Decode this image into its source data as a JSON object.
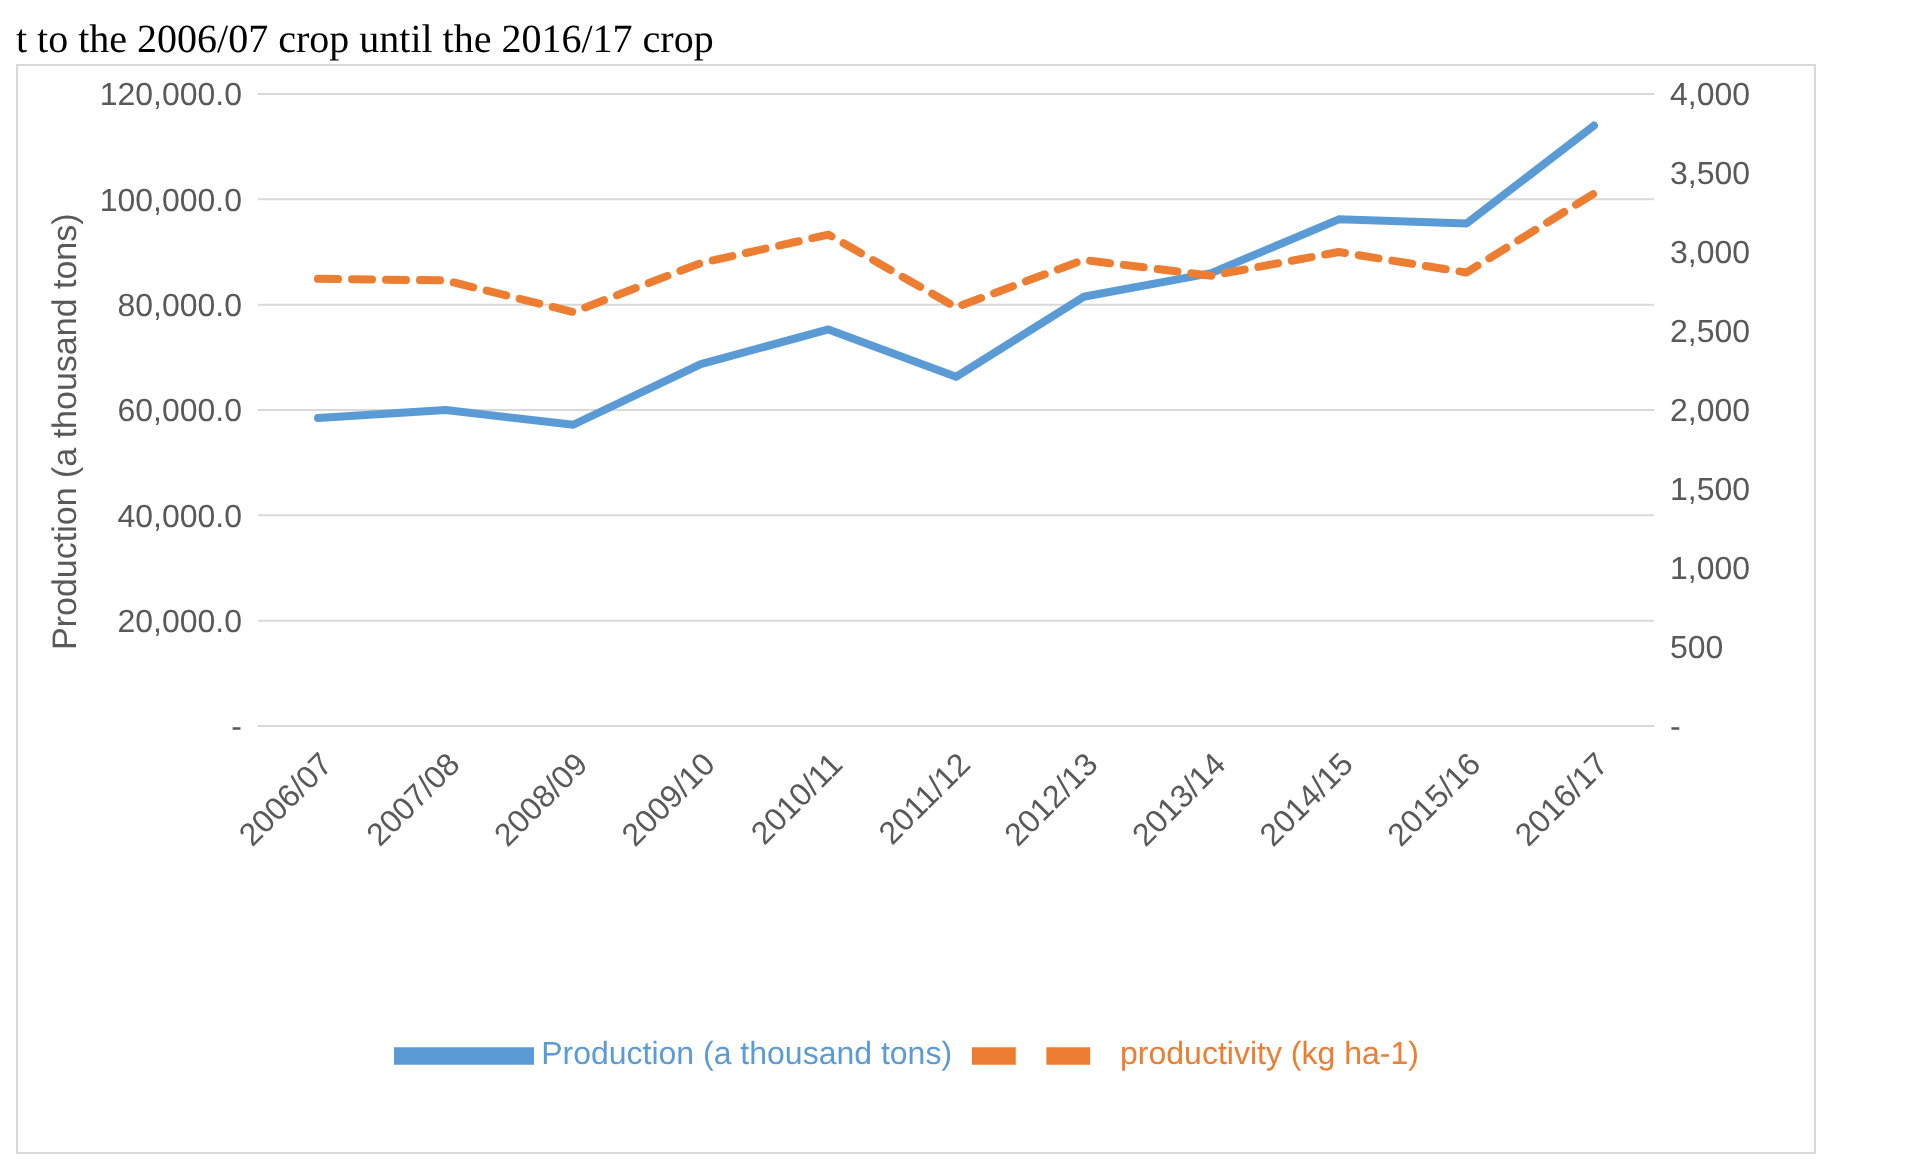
{
  "chart_data": {
    "type": "line",
    "annotations": [
      "t to the 2006/07 crop until the 2016/17 crop"
    ],
    "ylabel": "Production (a thousand tons)",
    "categories": [
      "2006/07",
      "2007/08",
      "2008/09",
      "2009/10",
      "2010/11",
      "2011/12",
      "2012/13",
      "2013/14",
      "2014/15",
      "2015/16",
      "2016/17"
    ],
    "series": [
      {
        "name": "Production (a thousand tons)",
        "color": "#5b9bd5",
        "line_style": "solid",
        "values": [
          58500,
          60000,
          57200,
          68700,
          75300,
          66300,
          81500,
          86000,
          96200,
          95400,
          114000
        ]
      },
      {
        "name": "productivity (kg ha-1)",
        "color": "#ed7d31",
        "line_style": "dashed",
        "axis": "y2",
        "values": [
          2830,
          2820,
          2620,
          2930,
          3110,
          2650,
          2950,
          2850,
          3000,
          2870,
          3370
        ]
      }
    ],
    "ylim": [
      0,
      120000
    ],
    "yticks": [
      {
        "value": 0,
        "label": "-"
      },
      {
        "value": 20000,
        "label": "20,000.0"
      },
      {
        "value": 40000,
        "label": "40,000.0"
      },
      {
        "value": 60000,
        "label": "60,000.0"
      },
      {
        "value": 80000,
        "label": "80,000.0"
      },
      {
        "value": 100000,
        "label": "100,000.0"
      },
      {
        "value": 120000,
        "label": "120,000.0"
      }
    ],
    "y2lim": [
      0,
      4000
    ],
    "y2ticks": [
      {
        "value": 0,
        "label": "-"
      },
      {
        "value": 500,
        "label": "500"
      },
      {
        "value": 1000,
        "label": "1,000"
      },
      {
        "value": 1500,
        "label": "1,500"
      },
      {
        "value": 2000,
        "label": "2,000"
      },
      {
        "value": 2500,
        "label": "2,500"
      },
      {
        "value": 3000,
        "label": "3,000"
      },
      {
        "value": 3500,
        "label": "3,500"
      },
      {
        "value": 4000,
        "label": "4,000"
      }
    ],
    "grid": "y",
    "legend": "bottom",
    "marker": "none"
  }
}
